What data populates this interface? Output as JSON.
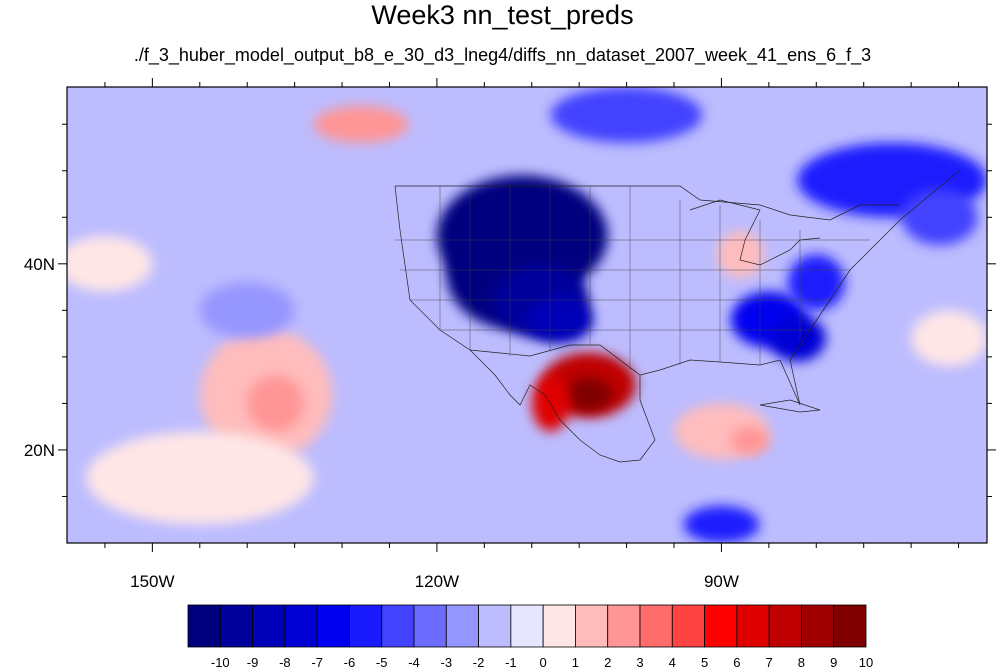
{
  "title": "Week3 nn_test_preds",
  "subtitle": "./f_3_huber_model_output_b8_e_30_d3_lneg4/diffs_nn_dataset_2007_week_41_ens_6_f_3",
  "map": {
    "lon_range": [
      -159,
      -62
    ],
    "lat_range": [
      10,
      59
    ],
    "lon_labels": [
      {
        "lon": -150,
        "text": "150W"
      },
      {
        "lon": -120,
        "text": "120W"
      },
      {
        "lon": -90,
        "text": "90W"
      }
    ],
    "lat_labels": [
      {
        "lat": 40,
        "text": "40N"
      },
      {
        "lat": 20,
        "text": "20N"
      }
    ],
    "background_value": -1
  },
  "colorbar": {
    "labels": [
      "-10",
      "-9",
      "-8",
      "-7",
      "-6",
      "-5",
      "-4",
      "-3",
      "-2",
      "-1",
      "0",
      "1",
      "2",
      "3",
      "4",
      "5",
      "6",
      "7",
      "8",
      "9",
      "10"
    ],
    "colors": [
      "#00007f",
      "#00009c",
      "#0000b8",
      "#0000d4",
      "#0000f0",
      "#1a1aff",
      "#4343ff",
      "#6c6cff",
      "#9595ff",
      "#bcbcff",
      "#e6e6ff",
      "#ffe6e6",
      "#ffbcbc",
      "#ff9595",
      "#ff6c6c",
      "#ff4343",
      "#ff0000",
      "#e00000",
      "#c00000",
      "#a00000",
      "#800000"
    ]
  },
  "anomalies": [
    {
      "lon": -111,
      "lat": 43,
      "rx": 9,
      "ry": 6.5,
      "value": -10
    },
    {
      "lon": -112,
      "lat": 39,
      "rx": 7,
      "ry": 6,
      "value": -10
    },
    {
      "lon": -109,
      "lat": 36,
      "rx": 5,
      "ry": 4,
      "value": -9
    },
    {
      "lon": -107,
      "lat": 34,
      "rx": 3.5,
      "ry": 2.5,
      "value": -8
    },
    {
      "lon": -104,
      "lat": 27,
      "rx": 5,
      "ry": 3.5,
      "value": 8
    },
    {
      "lon": -104,
      "lat": 26,
      "rx": 2.5,
      "ry": 1.8,
      "value": 10
    },
    {
      "lon": -108,
      "lat": 25,
      "rx": 2,
      "ry": 3,
      "value": 7
    },
    {
      "lon": -85,
      "lat": 34,
      "rx": 4,
      "ry": 3,
      "value": -6
    },
    {
      "lon": -82,
      "lat": 32,
      "rx": 3,
      "ry": 2.5,
      "value": -7
    },
    {
      "lon": -80,
      "lat": 38,
      "rx": 3,
      "ry": 3,
      "value": -5
    },
    {
      "lon": -72,
      "lat": 49,
      "rx": 10,
      "ry": 4,
      "value": -5
    },
    {
      "lon": -67,
      "lat": 45,
      "rx": 4,
      "ry": 3,
      "value": -4
    },
    {
      "lon": -100,
      "lat": 56,
      "rx": 8,
      "ry": 3,
      "value": -4
    },
    {
      "lon": -128,
      "lat": 55,
      "rx": 5,
      "ry": 2,
      "value": 3
    },
    {
      "lon": -138,
      "lat": 26,
      "rx": 7,
      "ry": 7,
      "value": 2
    },
    {
      "lon": -137,
      "lat": 25,
      "rx": 3,
      "ry": 3,
      "value": 3
    },
    {
      "lon": -90,
      "lat": 22,
      "rx": 5,
      "ry": 3,
      "value": 2
    },
    {
      "lon": -87,
      "lat": 21,
      "rx": 2,
      "ry": 1.5,
      "value": 3
    },
    {
      "lon": -155,
      "lat": 40,
      "rx": 5,
      "ry": 3,
      "value": 1
    },
    {
      "lon": -66,
      "lat": 32,
      "rx": 4,
      "ry": 3,
      "value": 1
    },
    {
      "lon": -90,
      "lat": 12,
      "rx": 4,
      "ry": 2,
      "value": -5
    },
    {
      "lon": -145,
      "lat": 17,
      "rx": 12,
      "ry": 5,
      "value": 1
    },
    {
      "lon": -88,
      "lat": 41,
      "rx": 2.5,
      "ry": 2.5,
      "value": 2
    },
    {
      "lon": -140,
      "lat": 35,
      "rx": 5,
      "ry": 3,
      "value": -2
    }
  ]
}
